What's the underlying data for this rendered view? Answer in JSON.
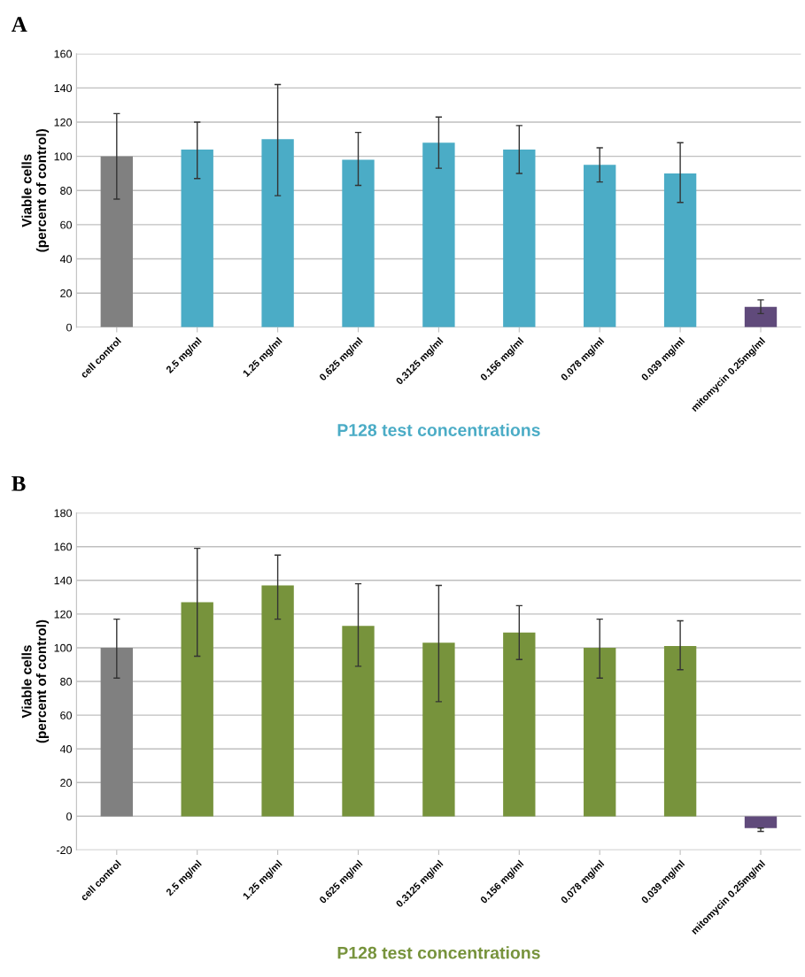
{
  "chart_data": [
    {
      "type": "bar",
      "title": "A",
      "xlabel": "P128 test concentrations",
      "ylabel": "Viable cells\n(percent of control)",
      "categories": [
        "cell control",
        "2.5 mg/ml",
        "1.25 mg/ml",
        "0.625 mg/ml",
        "0.3125 mg/ml",
        "0.156 mg/ml",
        "0.078 mg/ml",
        "0.039 mg/ml",
        "mitomycin 0.25mg/ml"
      ],
      "values": [
        100,
        104,
        110,
        98,
        108,
        104,
        95,
        90,
        12
      ],
      "errors": [
        [
          75,
          125
        ],
        [
          87,
          120
        ],
        [
          77,
          142
        ],
        [
          83,
          114
        ],
        [
          93,
          123
        ],
        [
          90,
          118
        ],
        [
          85,
          105
        ],
        [
          73,
          108
        ],
        [
          8,
          16
        ]
      ],
      "colors": [
        "#808080",
        "#4bacc6",
        "#4bacc6",
        "#4bacc6",
        "#4bacc6",
        "#4bacc6",
        "#4bacc6",
        "#4bacc6",
        "#604a7b"
      ],
      "ylim": [
        0,
        160
      ],
      "yticks": [
        0,
        20,
        40,
        60,
        80,
        100,
        120,
        140,
        160
      ],
      "grid": "y"
    },
    {
      "type": "bar",
      "title": "B",
      "xlabel": "P128 test concentrations",
      "ylabel": "Viable cells\n(percent of control)",
      "categories": [
        "cell control",
        "2.5 mg/ml",
        "1.25 mg/ml",
        "0.625 mg/ml",
        "0.3125 mg/ml",
        "0.156 mg/ml",
        "0.078 mg/ml",
        "0.039 mg/ml",
        "mitomycin 0.25mg/ml"
      ],
      "values": [
        100,
        127,
        137,
        113,
        103,
        109,
        100,
        101,
        -7
      ],
      "errors": [
        [
          82,
          117
        ],
        [
          95,
          159
        ],
        [
          117,
          155
        ],
        [
          89,
          138
        ],
        [
          68,
          137
        ],
        [
          93,
          125
        ],
        [
          82,
          117
        ],
        [
          87,
          116
        ],
        [
          -9,
          -7
        ]
      ],
      "colors": [
        "#808080",
        "#77933c",
        "#77933c",
        "#77933c",
        "#77933c",
        "#77933c",
        "#77933c",
        "#77933c",
        "#604a7b"
      ],
      "ylim": [
        -20,
        180
      ],
      "yticks": [
        -20,
        0,
        20,
        40,
        60,
        80,
        100,
        120,
        140,
        160,
        180
      ],
      "grid": "y"
    }
  ]
}
